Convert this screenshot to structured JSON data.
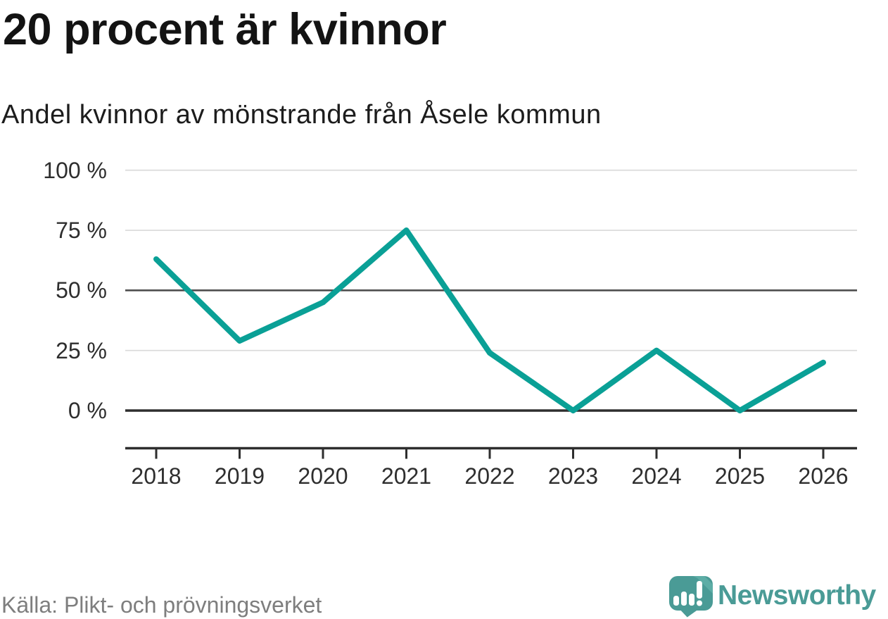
{
  "header": {
    "title": "20 procent är kvinnor",
    "subtitle": "Andel kvinnor av mönstrande från Åsele kommun"
  },
  "source": {
    "label": "Källa: Plikt- och prövningsverket"
  },
  "branding": {
    "name": "Newsworthy",
    "logo_icon": "speech-bubble-bar-chart-icon"
  },
  "colors": {
    "line": "#0aa096",
    "brand": "#4a9b96",
    "brand_light": "#5dada6",
    "grid_light": "#d9d9d9",
    "grid_mid": "#4f4f4f",
    "axis_dark": "#2e2e2e",
    "text_dark": "#2e2e2e",
    "source_text": "#7e7e7e"
  },
  "chart_data": {
    "type": "line",
    "title": "20 procent är kvinnor",
    "subtitle": "Andel kvinnor av mönstrande från Åsele kommun",
    "categories": [
      "2018",
      "2019",
      "2020",
      "2021",
      "2022",
      "2023",
      "2024",
      "2025",
      "2026"
    ],
    "series": [
      {
        "name": "Andel kvinnor av mönstrande",
        "values": [
          63,
          29,
          45,
          75,
          24,
          0,
          25,
          0,
          20
        ]
      }
    ],
    "unit": "%",
    "yticks": [
      "100 %",
      "75 %",
      "50 %",
      "25 %",
      "0 %"
    ],
    "ytick_values": [
      100,
      75,
      50,
      25,
      0
    ],
    "ylim": [
      0,
      100
    ],
    "xlabel": "",
    "ylabel": "",
    "grid": "horizontal",
    "legend": "none",
    "emphasized_gridlines": [
      0,
      50
    ]
  }
}
